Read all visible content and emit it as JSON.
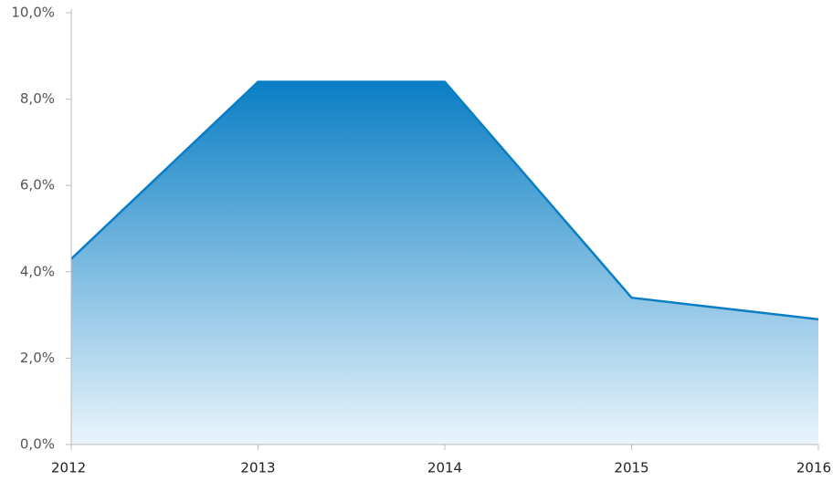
{
  "chart_data": {
    "type": "area",
    "categories": [
      "2012",
      "2013",
      "2014",
      "2015",
      "2016"
    ],
    "series": [
      {
        "color": "#0a7ec4",
        "values": [
          4.3,
          8.4,
          8.4,
          3.4,
          2.9
        ]
      }
    ],
    "ylim": [
      0,
      10
    ],
    "yticks": [
      {
        "value": 0,
        "label": "0,0%"
      },
      {
        "value": 2,
        "label": "2,0%"
      },
      {
        "value": 4,
        "label": "4,0%"
      },
      {
        "value": 6,
        "label": "6,0%"
      },
      {
        "value": 8,
        "label": "8,0%"
      },
      {
        "value": 10,
        "label": "10,0%"
      }
    ]
  }
}
